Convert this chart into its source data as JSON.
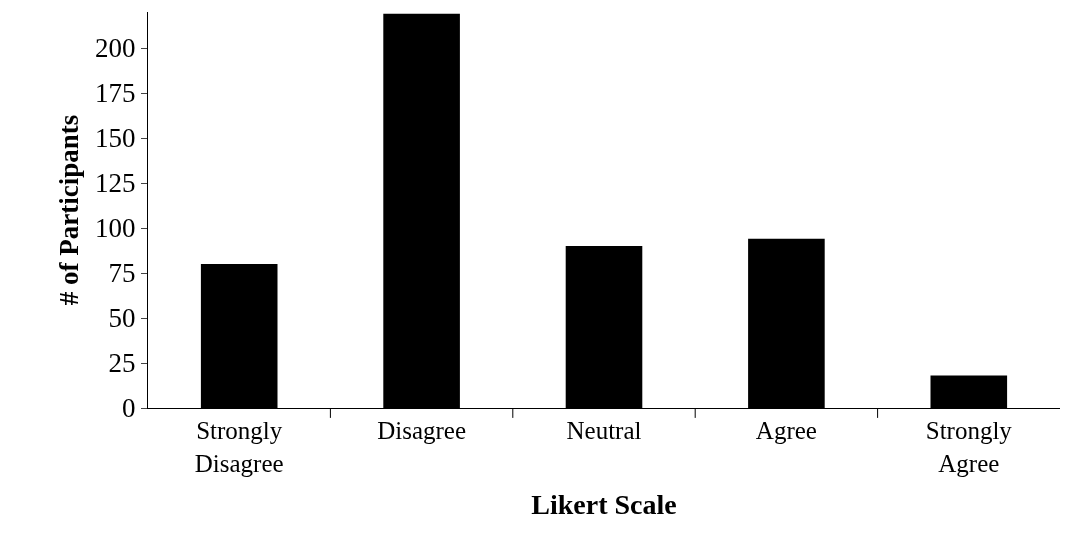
{
  "chart_data": {
    "type": "bar",
    "xlabel": "Likert Scale",
    "ylabel": "# of Participants",
    "categories": [
      "Strongly Disagree",
      "Disagree",
      "Neutral",
      "Agree",
      "Strongly Agree"
    ],
    "values": [
      80,
      219,
      90,
      94,
      18
    ],
    "color": "#000000",
    "ylim": [
      0,
      220
    ],
    "yticks": [
      0,
      25,
      50,
      75,
      100,
      125,
      150,
      175,
      200
    ]
  }
}
